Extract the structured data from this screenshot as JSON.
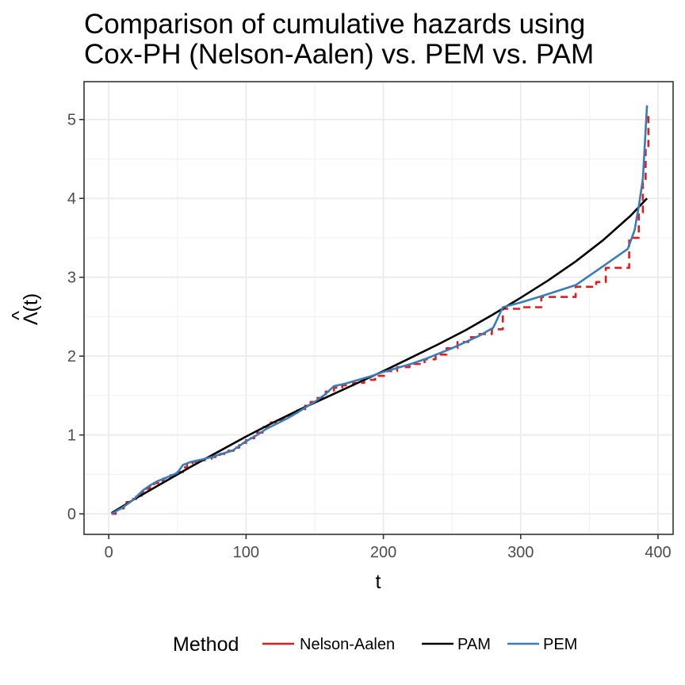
{
  "chart_data": {
    "type": "line",
    "title_lines": [
      "Comparison of cumulative hazards using",
      "Cox-PH (Nelson-Aalen) vs. PEM vs. PAM"
    ],
    "xlabel": "t",
    "ylabel": "Λ(t)",
    "ylabel_hat": "^",
    "xlim": [
      -18,
      411
    ],
    "ylim": [
      -0.26,
      5.48
    ],
    "x_ticks": [
      0,
      100,
      200,
      300,
      400
    ],
    "y_ticks": [
      0,
      1,
      2,
      3,
      4,
      5
    ],
    "x_tick_labels": [
      "0",
      "100",
      "200",
      "300",
      "400"
    ],
    "y_tick_labels": [
      "0",
      "1",
      "2",
      "3",
      "4",
      "5"
    ],
    "grid": true,
    "legend": {
      "position": "bottom",
      "title": "Method",
      "labels": [
        "Nelson-Aalen",
        "PAM",
        "PEM"
      ]
    },
    "series": [
      {
        "name": "Nelson-Aalen",
        "color": "#e41a1c",
        "style": "dashed-step",
        "x": [
          2,
          5,
          8,
          11,
          13,
          16,
          20,
          24,
          27,
          30,
          33,
          36,
          40,
          45,
          50,
          54,
          57,
          61,
          65,
          70,
          75,
          81,
          87,
          91,
          95,
          100,
          106,
          112,
          118,
          125,
          131,
          137,
          143,
          147,
          152,
          158,
          164,
          170,
          178,
          186,
          194,
          202,
          210,
          219,
          230,
          238,
          246,
          254,
          262,
          270,
          279,
          287,
          300,
          315,
          340,
          355,
          362,
          379,
          386,
          389,
          391,
          393
        ],
        "y": [
          0.0,
          0.03,
          0.07,
          0.11,
          0.15,
          0.19,
          0.23,
          0.28,
          0.32,
          0.36,
          0.39,
          0.42,
          0.45,
          0.49,
          0.53,
          0.59,
          0.63,
          0.66,
          0.68,
          0.7,
          0.72,
          0.76,
          0.8,
          0.84,
          0.9,
          0.96,
          1.03,
          1.1,
          1.16,
          1.2,
          1.25,
          1.31,
          1.37,
          1.42,
          1.47,
          1.55,
          1.6,
          1.63,
          1.66,
          1.7,
          1.75,
          1.81,
          1.86,
          1.9,
          1.96,
          2.02,
          2.1,
          2.18,
          2.24,
          2.28,
          2.34,
          2.6,
          2.62,
          2.75,
          2.88,
          2.94,
          3.12,
          3.5,
          3.82,
          4.2,
          4.65,
          5.05
        ]
      },
      {
        "name": "PAM",
        "color": "#000000",
        "style": "solid",
        "x": [
          2,
          20,
          40,
          60,
          80,
          100,
          120,
          140,
          160,
          180,
          200,
          220,
          240,
          260,
          280,
          300,
          320,
          340,
          360,
          380,
          392
        ],
        "y": [
          0.01,
          0.2,
          0.4,
          0.6,
          0.79,
          0.98,
          1.16,
          1.33,
          1.49,
          1.65,
          1.81,
          1.98,
          2.15,
          2.33,
          2.53,
          2.74,
          2.96,
          3.2,
          3.47,
          3.78,
          4.0
        ]
      },
      {
        "name": "PEM",
        "color": "#377eb8",
        "style": "solid",
        "x": [
          2,
          10,
          18,
          25,
          30,
          35,
          42,
          50,
          54,
          60,
          68,
          75,
          82,
          90,
          95,
          100,
          108,
          115,
          122,
          130,
          138,
          145,
          150,
          158,
          164,
          172,
          180,
          190,
          200,
          210,
          220,
          230,
          240,
          250,
          260,
          270,
          280,
          287,
          300,
          315,
          340,
          360,
          378,
          383,
          386,
          389,
          392
        ],
        "y": [
          0.0,
          0.08,
          0.18,
          0.3,
          0.36,
          0.41,
          0.46,
          0.52,
          0.62,
          0.66,
          0.69,
          0.72,
          0.76,
          0.8,
          0.86,
          0.92,
          1.0,
          1.08,
          1.14,
          1.21,
          1.29,
          1.37,
          1.42,
          1.52,
          1.62,
          1.65,
          1.69,
          1.74,
          1.8,
          1.85,
          1.9,
          1.96,
          2.03,
          2.1,
          2.18,
          2.26,
          2.36,
          2.62,
          2.68,
          2.76,
          2.9,
          3.14,
          3.36,
          3.6,
          3.9,
          4.25,
          5.18
        ]
      }
    ]
  }
}
